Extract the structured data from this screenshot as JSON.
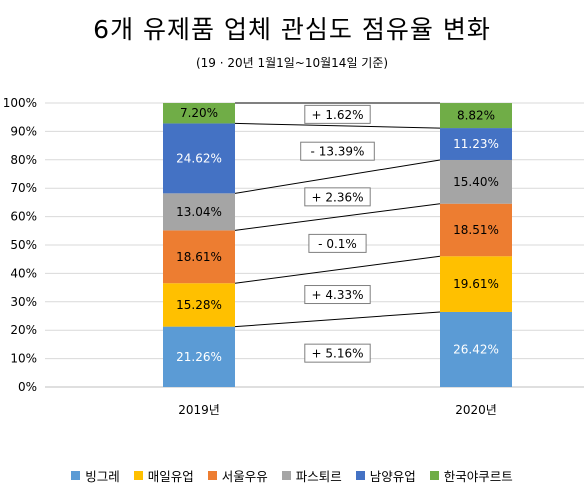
{
  "title": "6개 유제품 업체 관심도 점유율 변화",
  "subtitle": "(19 · 20년 1월1일~10월14일 기준)",
  "chart_data": {
    "type": "bar",
    "stacked": true,
    "categories": [
      "2019년",
      "2020년"
    ],
    "ylim": [
      0,
      100
    ],
    "yticks": [
      "0%",
      "10%",
      "20%",
      "30%",
      "40%",
      "50%",
      "60%",
      "70%",
      "80%",
      "90%",
      "100%"
    ],
    "series": [
      {
        "name": "빙그레",
        "color": "#5b9bd5",
        "values": [
          21.26,
          26.42
        ],
        "labels": [
          "21.26%",
          "26.42%"
        ],
        "text_color": "#ffffff"
      },
      {
        "name": "매일유업",
        "color": "#ffc000",
        "values": [
          15.28,
          19.61
        ],
        "labels": [
          "15.28%",
          "19.61%"
        ],
        "text_color": "#000000"
      },
      {
        "name": "서울우유",
        "color": "#ed7d31",
        "values": [
          18.61,
          18.51
        ],
        "labels": [
          "18.61%",
          "18.51%"
        ],
        "text_color": "#000000"
      },
      {
        "name": "파스퇴르",
        "color": "#a5a5a5",
        "values": [
          13.04,
          15.4
        ],
        "labels": [
          "13.04%",
          "15.40%"
        ],
        "text_color": "#000000"
      },
      {
        "name": "남양유업",
        "color": "#4472c4",
        "values": [
          24.62,
          11.23
        ],
        "labels": [
          "24.62%",
          "11.23%"
        ],
        "text_color": "#ffffff"
      },
      {
        "name": "한국야쿠르트",
        "color": "#70ad47",
        "values": [
          7.2,
          8.82
        ],
        "labels": [
          "7.20%",
          "8.82%"
        ],
        "text_color": "#000000"
      }
    ],
    "annotations": [
      "+ 5.16%",
      "+ 4.33%",
      "- 0.1%",
      "+ 2.36%",
      "- 13.39%",
      "+ 1.62%"
    ],
    "grid": true,
    "legend": "bottom"
  }
}
